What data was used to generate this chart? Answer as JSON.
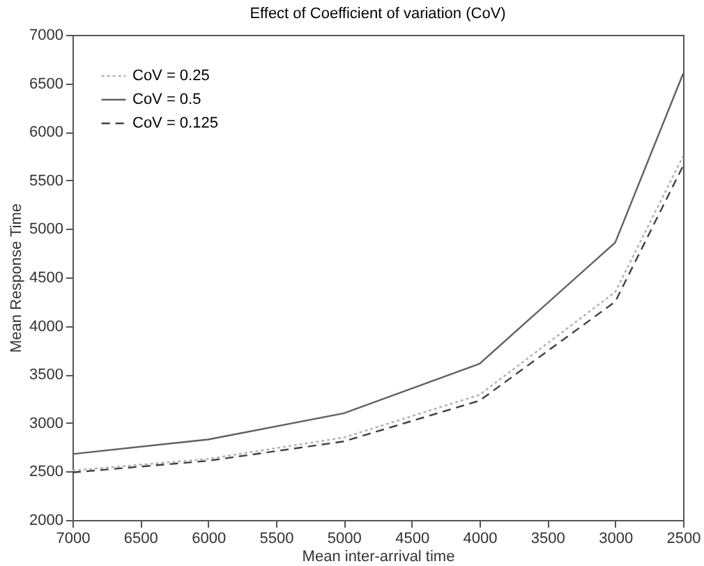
{
  "chart_data": {
    "type": "line",
    "title": "Effect of Coefficient of variation (CoV)",
    "xlabel": "Mean inter-arrival time",
    "ylabel": "Mean Response Time",
    "x": [
      7000,
      6000,
      5000,
      4000,
      3000,
      2500
    ],
    "series": [
      {
        "name": "CoV = 0.25",
        "color": "#b0b0b0",
        "line_style": "dotted",
        "values": [
          2510,
          2630,
          2850,
          3290,
          4350,
          5750
        ]
      },
      {
        "name": "CoV = 0.5",
        "color": "#606060",
        "line_style": "solid",
        "values": [
          2680,
          2830,
          3100,
          3610,
          4860,
          6600
        ]
      },
      {
        "name": "CoV = 0.125",
        "color": "#404040",
        "line_style": "dashed",
        "values": [
          2490,
          2610,
          2810,
          3230,
          4250,
          5650
        ]
      }
    ],
    "xlim": [
      7000,
      2500
    ],
    "xticks": [
      7000,
      6500,
      6000,
      5500,
      5000,
      4500,
      4000,
      3500,
      3000,
      2500
    ],
    "ylim": [
      2000,
      7000
    ],
    "yticks": [
      2000,
      2500,
      3000,
      3500,
      4000,
      4500,
      5000,
      5500,
      6000,
      6500,
      7000
    ],
    "grid": false,
    "legend": "top left",
    "marker": "none"
  }
}
